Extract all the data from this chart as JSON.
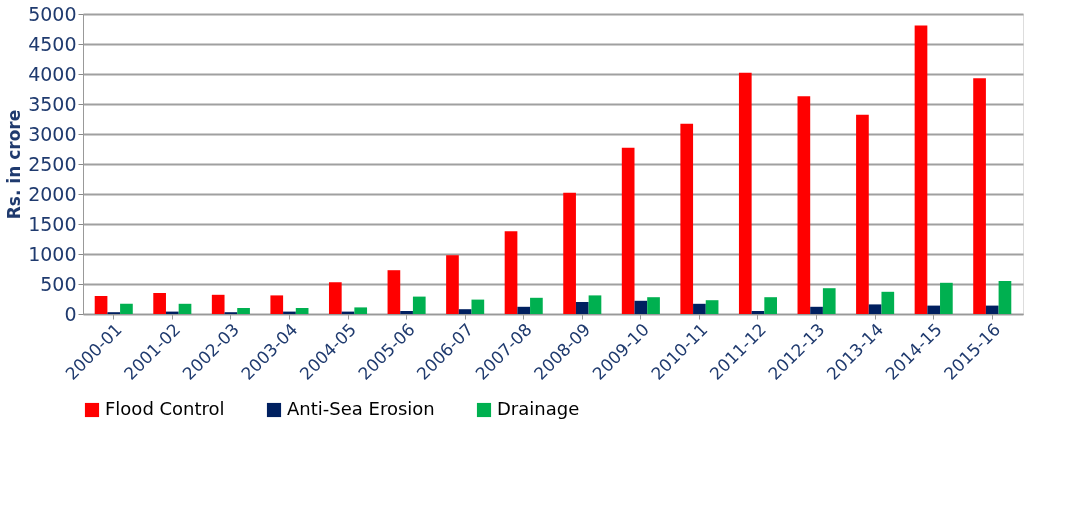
{
  "chart_data": {
    "type": "bar",
    "ylabel": "Rs. in crore",
    "categories": [
      "2000-01",
      "2001-02",
      "2002-03",
      "2003-04",
      "2004-05",
      "2005-06",
      "2006-07",
      "2007-08",
      "2008-09",
      "2009-10",
      "2010-11",
      "2011-12",
      "2012-13",
      "2013-14",
      "2014-15",
      "2015-16"
    ],
    "series": [
      {
        "name": "Flood Control",
        "color": "#ff0000",
        "values": [
          300,
          350,
          320,
          310,
          530,
          730,
          980,
          1380,
          2020,
          2770,
          3170,
          4020,
          3630,
          3320,
          4810,
          3930
        ]
      },
      {
        "name": "Anti-Sea Erosion",
        "color": "#002060",
        "values": [
          30,
          40,
          30,
          40,
          40,
          50,
          80,
          120,
          200,
          220,
          170,
          50,
          120,
          160,
          140,
          140
        ]
      },
      {
        "name": "Drainage",
        "color": "#00b050",
        "values": [
          170,
          170,
          100,
          100,
          110,
          290,
          240,
          270,
          310,
          280,
          230,
          280,
          430,
          370,
          520,
          550
        ]
      }
    ],
    "ylim": [
      0,
      5000
    ],
    "yticks": [
      0,
      500,
      1000,
      1500,
      2000,
      2500,
      3000,
      3500,
      4000,
      4500,
      5000
    ],
    "grid": "y",
    "legend": "bottom"
  }
}
